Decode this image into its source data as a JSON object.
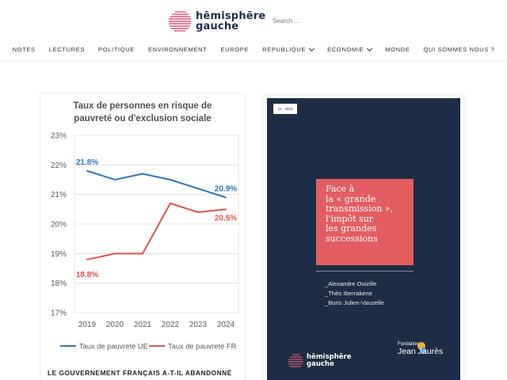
{
  "header": {
    "logo_line1": "hēmisphēre",
    "logo_line2": "gauche",
    "search_placeholder": "Search ..."
  },
  "nav": {
    "items": [
      {
        "label": "NOTES",
        "dropdown": false
      },
      {
        "label": "LECTURES",
        "dropdown": false
      },
      {
        "label": "POLITIQUE",
        "dropdown": false
      },
      {
        "label": "ENVIRONNEMENT",
        "dropdown": false
      },
      {
        "label": "EUROPE",
        "dropdown": false
      },
      {
        "label": "RÉPUBLIQUE",
        "dropdown": true
      },
      {
        "label": "ECONOMIE",
        "dropdown": true
      },
      {
        "label": "MONDE",
        "dropdown": false
      },
      {
        "label": "QUI SOMMES NOUS ?",
        "dropdown": false
      }
    ]
  },
  "chart_data": {
    "type": "line",
    "title": "Taux de personnes en risque de pauvreté ou d'exclusion sociale",
    "title_lines": [
      "Taux de personnes en risque de",
      "pauvreté ou d'exclusion sociale"
    ],
    "x": [
      2019,
      2020,
      2021,
      2022,
      2023,
      2024
    ],
    "x_tick_labels": [
      "2019",
      "2020",
      "2021",
      "2022",
      "2023",
      "2024"
    ],
    "y_tick_labels": [
      "23%",
      "22%",
      "21%",
      "20%",
      "19%",
      "18%",
      "17%"
    ],
    "ylim": [
      17,
      23
    ],
    "grid": true,
    "legend_position": "bottom",
    "series": [
      {
        "name": "Taux de pauvreté UE",
        "color": "#2e75b6",
        "values": [
          21.8,
          21.5,
          21.7,
          21.5,
          21.2,
          20.9
        ],
        "labels": [
          {
            "index": 0,
            "text": "21.8%"
          },
          {
            "index": 5,
            "text": "20.9%"
          }
        ]
      },
      {
        "name": "Taux de pauvreté FR",
        "color": "#e0524d",
        "values": [
          18.8,
          19.0,
          19.0,
          20.7,
          20.4,
          20.5
        ],
        "labels": [
          {
            "index": 0,
            "text": "18.8%"
          },
          {
            "index": 5,
            "text": "20.5%"
          }
        ]
      }
    ]
  },
  "article": {
    "title": "LE GOUVERNEMENT FRANÇAIS A-T-IL ABANDONNÉ"
  },
  "cover": {
    "date": "11 . 2024",
    "title_lines": [
      "Face à",
      "la « grande",
      "transmission »,",
      "l'impôt sur",
      "les grandes",
      "successions"
    ],
    "authors": [
      "_Alexandre Ouizille",
      "_Théo Iberrakene",
      "_Boris Julien-Vauzelle"
    ],
    "logo_line1": "hēmisphēre",
    "logo_line2": "gauche",
    "foundation_line1": "Fondation",
    "foundation_line2": "Jean Jaurès",
    "colors": {
      "background": "#1d2d45",
      "title_box": "#e35d60"
    }
  }
}
